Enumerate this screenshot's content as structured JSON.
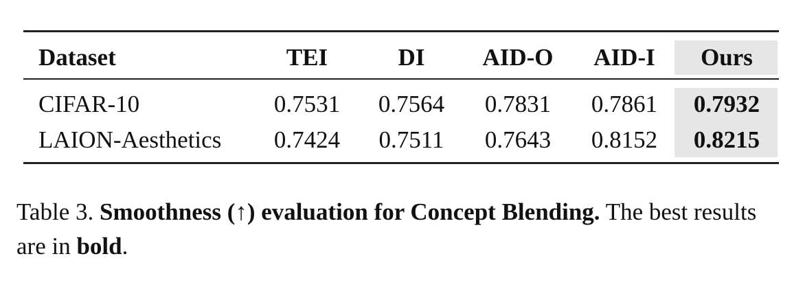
{
  "table": {
    "headers": [
      "Dataset",
      "TEI",
      "DI",
      "AID-O",
      "AID-I",
      "Ours"
    ],
    "rows": [
      {
        "dataset": "CIFAR-10",
        "values": [
          "0.7531",
          "0.7564",
          "0.7831",
          "0.7861",
          "0.7932"
        ]
      },
      {
        "dataset": "LAION-Aesthetics",
        "values": [
          "0.7424",
          "0.7511",
          "0.7643",
          "0.8152",
          "0.8215"
        ]
      }
    ],
    "highlight_color": "#e6e6e6"
  },
  "caption": {
    "label": "Table 3.",
    "title": "Smoothness (↑) evaluation for Concept Blending.",
    "text_1": "The best results are in",
    "bold_word": "bold",
    "end": "."
  }
}
